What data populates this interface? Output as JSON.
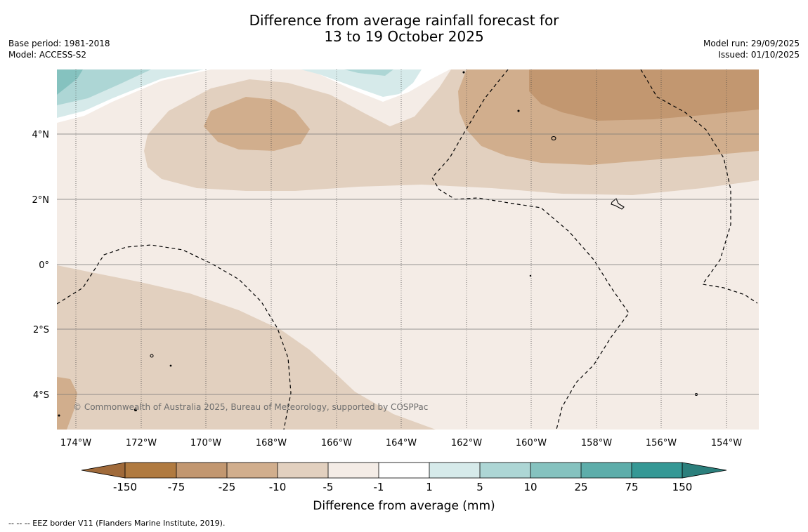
{
  "title": {
    "line1": "Difference from average rainfall forecast for",
    "line2": "13 to 19 October 2025"
  },
  "meta_left": {
    "base_period": "Base period: 1981-2018",
    "model": "Model: ACCESS-S2"
  },
  "meta_right": {
    "model_run": "Model run: 29/09/2025",
    "issued": "Issued: 01/10/2025"
  },
  "map": {
    "latitude_labels": [
      "4°N",
      "2°N",
      "0°",
      "2°S",
      "4°S"
    ],
    "longitude_labels": [
      "174°W",
      "172°W",
      "170°W",
      "168°W",
      "166°W",
      "164°W",
      "162°W",
      "160°W",
      "158°W",
      "156°W",
      "154°W"
    ],
    "copyright": "© Commonwealth of Australia 2025, Bureau of Meteorology, supported by COSPPac",
    "colors": {
      "band_-10_-5": "#e2d0bf",
      "band_-25_-10": "#d1ae8d",
      "band_-75_-25": "#c29770",
      "band_-5_-1": "#f4ece6",
      "band_1_5": "#d6eaea",
      "band_5_10": "#add6d5",
      "band_10_25": "#85c2bf"
    }
  },
  "colorbar": {
    "title": "Difference from average (mm)",
    "tick_labels": [
      "-150",
      "-75",
      "-25",
      "-10",
      "-5",
      "-1",
      "1",
      "5",
      "10",
      "25",
      "75",
      "150"
    ],
    "colors": [
      "#a06a3a",
      "#b07a40",
      "#c29770",
      "#d1ae8d",
      "#e2d0bf",
      "#f4ece6",
      "#ffffff",
      "#d6eaea",
      "#add6d5",
      "#85c2bf",
      "#5dadaa",
      "#359895",
      "#2b7f7c"
    ]
  },
  "footer": "--  --  -- EEZ border V11 (Flanders Marine Institute, 2019)."
}
